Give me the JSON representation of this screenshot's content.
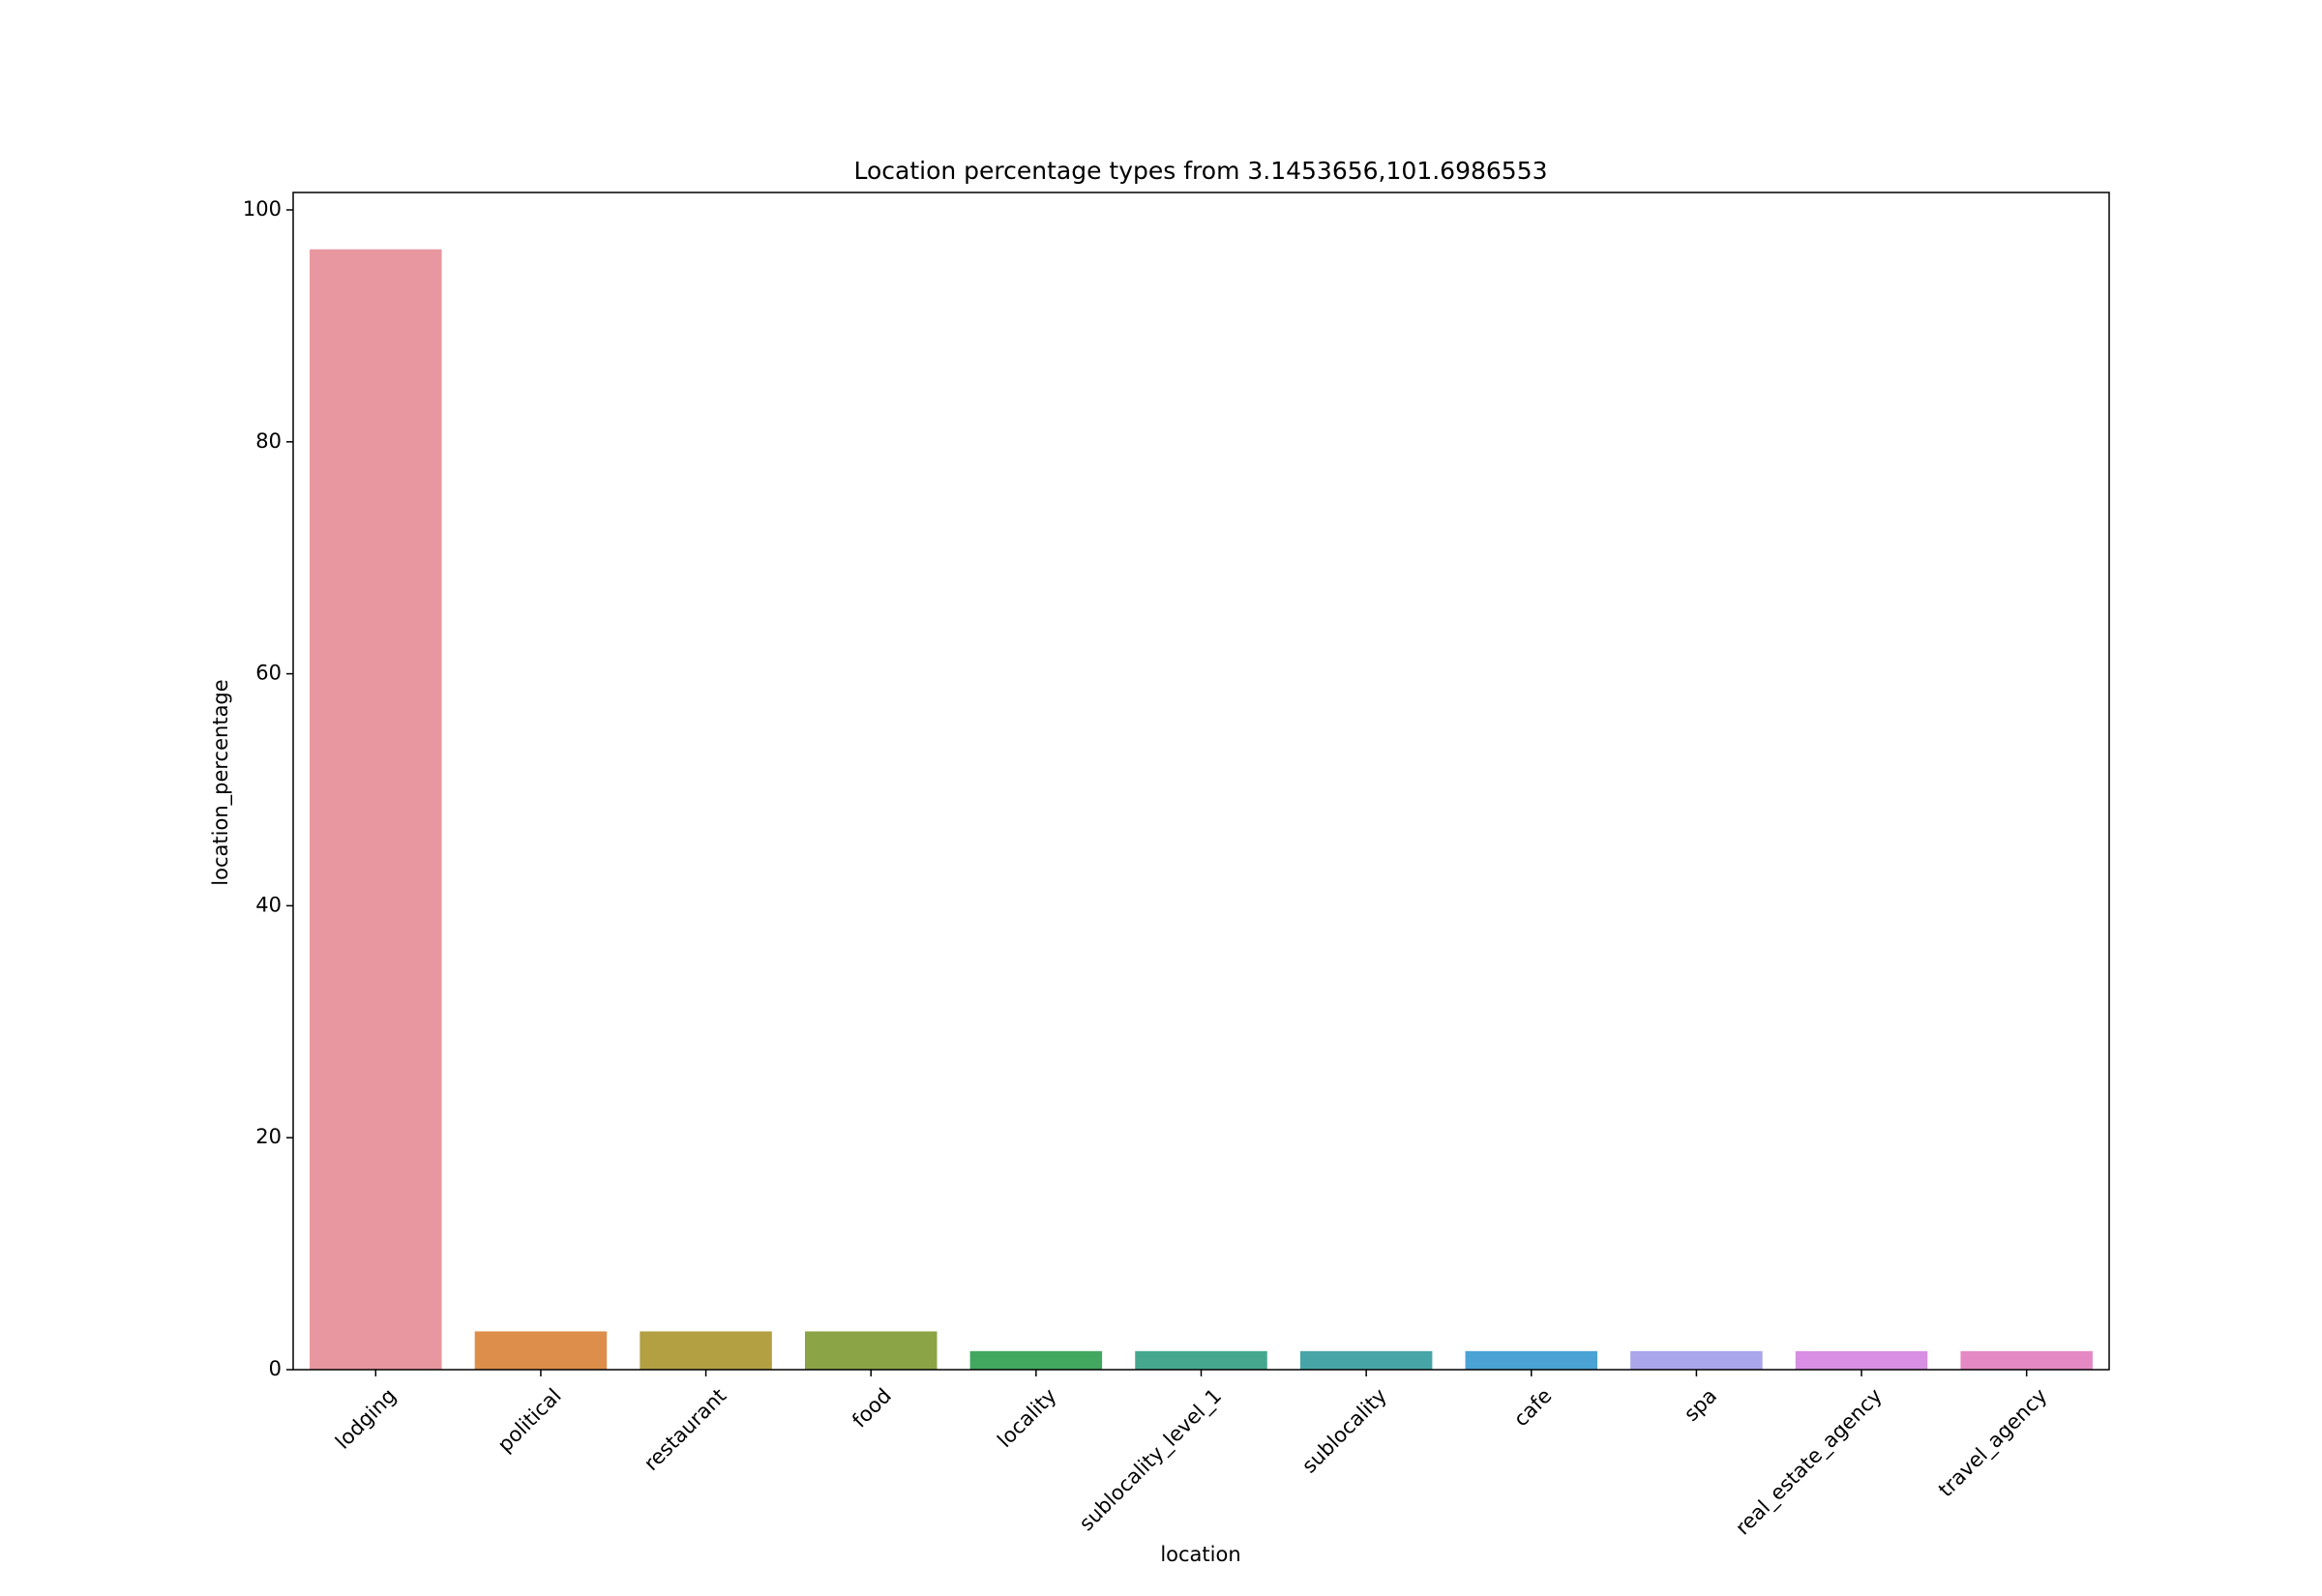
{
  "chart_data": {
    "type": "bar",
    "title": "Location percentage types from 3.1453656,101.6986553",
    "x_label": "location",
    "y_label": "location_percentage",
    "categories": [
      "lodging",
      "political",
      "restaurant",
      "food",
      "locality",
      "sublocality_level_1",
      "sublocality",
      "cafe",
      "spa",
      "real_estate_agency",
      "travel_agency"
    ],
    "values": [
      96.6,
      3.3,
      3.3,
      3.3,
      1.6,
      1.6,
      1.6,
      1.6,
      1.6,
      1.6,
      1.6
    ],
    "colors": [
      "#e8969f",
      "#dd8e4a",
      "#b3a043",
      "#8ba446",
      "#42a85f",
      "#45a88e",
      "#47a5a8",
      "#4aa3d4",
      "#a9a6ec",
      "#d88fe4",
      "#e589c4"
    ],
    "ylim": [
      0,
      101.5
    ],
    "yticks": [
      0,
      20,
      40,
      60,
      80,
      100
    ],
    "grid": false
  }
}
